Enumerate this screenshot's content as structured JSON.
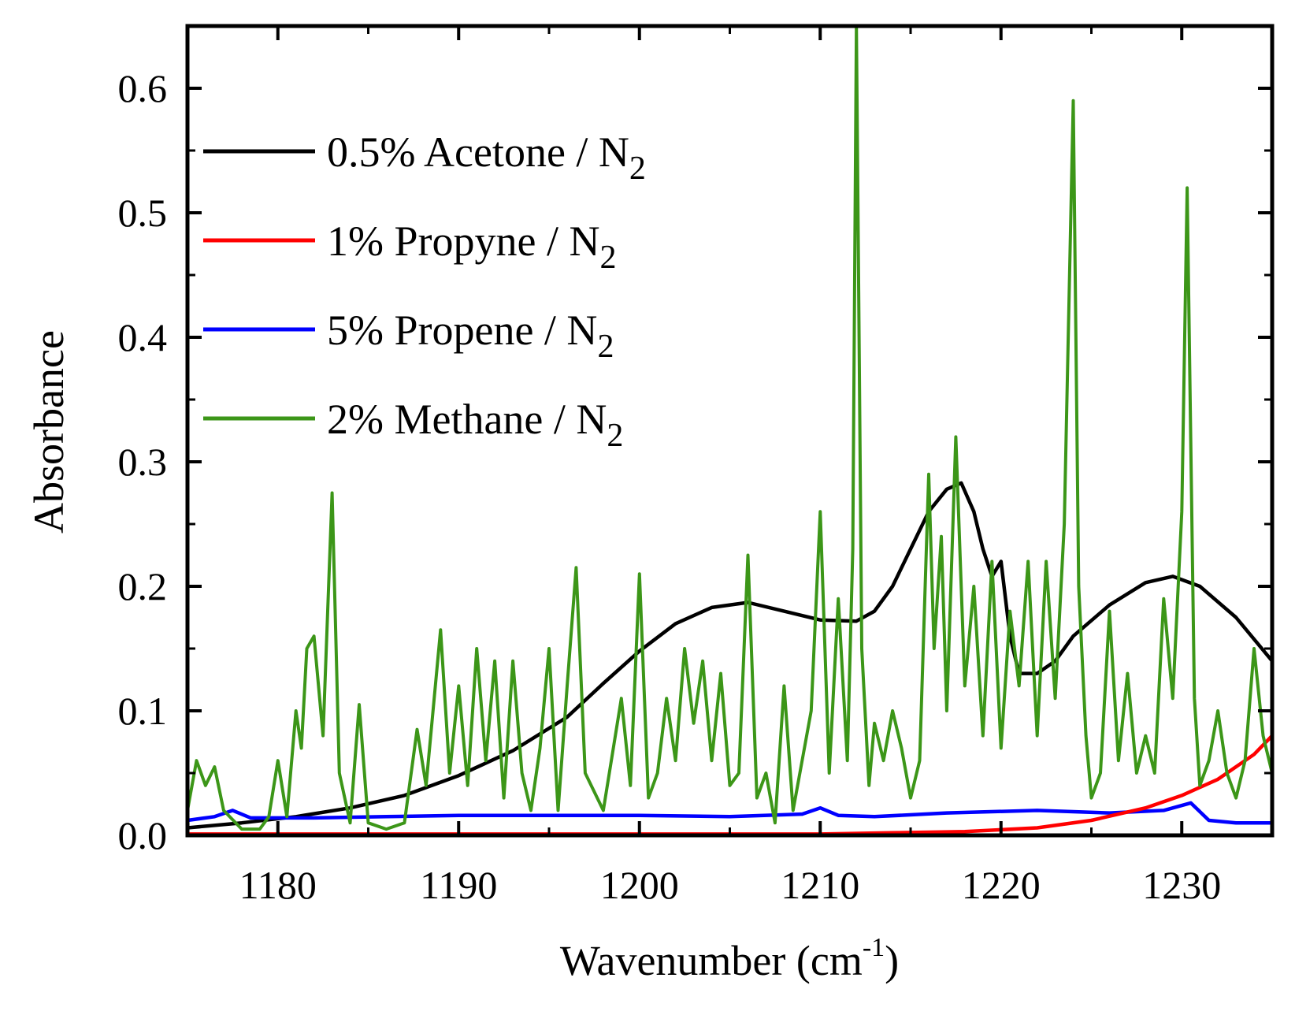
{
  "chart_data": {
    "type": "line",
    "title": "",
    "xlabel": "Wavenumber (cm",
    "xlabel_superscript": "-1",
    "xlabel_suffix": ")",
    "ylabel": "Absorbance",
    "xlim": [
      1175,
      1235
    ],
    "ylim": [
      0.0,
      0.65
    ],
    "x_ticks": [
      1180,
      1190,
      1200,
      1210,
      1220,
      1230
    ],
    "x_tick_labels": [
      "1180",
      "1190",
      "1200",
      "1210",
      "1220",
      "1230"
    ],
    "y_ticks": [
      0.0,
      0.1,
      0.2,
      0.3,
      0.4,
      0.5,
      0.6
    ],
    "y_tick_labels": [
      "0.0",
      "0.1",
      "0.2",
      "0.3",
      "0.4",
      "0.5",
      "0.6"
    ],
    "grid": false,
    "legend_position": "top-left",
    "series": [
      {
        "name": "0.5% Acetone / N",
        "name_subscript": "2",
        "color": "#000000",
        "x": [
          1175,
          1178,
          1181,
          1184,
          1187,
          1190,
          1193,
          1196,
          1198,
          1200,
          1202,
          1204,
          1206,
          1208,
          1210,
          1212,
          1213,
          1214,
          1215,
          1216,
          1217,
          1217.8,
          1218.5,
          1219,
          1219.5,
          1220,
          1220.5,
          1221,
          1222,
          1223,
          1224,
          1226,
          1228,
          1229.5,
          1231,
          1233,
          1235
        ],
        "y": [
          0.006,
          0.01,
          0.015,
          0.022,
          0.032,
          0.048,
          0.068,
          0.095,
          0.122,
          0.148,
          0.17,
          0.183,
          0.187,
          0.18,
          0.173,
          0.172,
          0.18,
          0.2,
          0.23,
          0.26,
          0.278,
          0.283,
          0.26,
          0.23,
          0.208,
          0.22,
          0.16,
          0.13,
          0.13,
          0.14,
          0.16,
          0.185,
          0.203,
          0.208,
          0.2,
          0.175,
          0.14
        ]
      },
      {
        "name": "1% Propyne / N",
        "name_subscript": "2",
        "color": "#ff0000",
        "x": [
          1175,
          1210,
          1214,
          1218,
          1222,
          1225,
          1228,
          1230,
          1232,
          1234,
          1235
        ],
        "y": [
          0.001,
          0.001,
          0.002,
          0.003,
          0.006,
          0.012,
          0.022,
          0.032,
          0.045,
          0.065,
          0.08
        ]
      },
      {
        "name": "5% Propene / N",
        "name_subscript": "2",
        "color": "#0000ff",
        "x": [
          1175,
          1176.5,
          1177.5,
          1178.5,
          1182,
          1186,
          1190,
          1195,
          1200,
          1205,
          1209,
          1210,
          1211,
          1213,
          1217,
          1222,
          1226,
          1229,
          1230.5,
          1231.5,
          1233,
          1235
        ],
        "y": [
          0.012,
          0.015,
          0.02,
          0.014,
          0.014,
          0.015,
          0.016,
          0.016,
          0.016,
          0.015,
          0.017,
          0.022,
          0.016,
          0.015,
          0.018,
          0.02,
          0.018,
          0.02,
          0.026,
          0.012,
          0.01,
          0.01
        ]
      },
      {
        "name": "2% Methane / N",
        "name_subscript": "2",
        "color": "#3c9618",
        "x": [
          1175,
          1175.5,
          1176,
          1176.5,
          1177,
          1178,
          1179,
          1179.5,
          1180,
          1180.5,
          1181,
          1181.3,
          1181.6,
          1182,
          1182.5,
          1183,
          1183.4,
          1184,
          1184.5,
          1185,
          1186,
          1187,
          1187.7,
          1188.2,
          1189,
          1189.5,
          1190,
          1190.5,
          1191,
          1191.5,
          1192,
          1192.5,
          1193,
          1193.5,
          1194,
          1194.5,
          1195,
          1195.5,
          1196,
          1196.5,
          1197,
          1198,
          1199,
          1199.5,
          1200,
          1200.5,
          1201,
          1201.5,
          1202,
          1202.5,
          1203,
          1203.5,
          1204,
          1204.5,
          1205,
          1205.5,
          1206,
          1206.5,
          1207,
          1207.5,
          1208,
          1208.5,
          1209,
          1209.5,
          1210,
          1210.5,
          1211,
          1211.5,
          1211.8,
          1212,
          1212.3,
          1212.7,
          1213,
          1213.5,
          1214,
          1214.5,
          1215,
          1215.5,
          1216,
          1216.3,
          1216.7,
          1217,
          1217.5,
          1218,
          1218.5,
          1219,
          1219.5,
          1220,
          1220.5,
          1221,
          1221.5,
          1222,
          1222.5,
          1223,
          1223.5,
          1224,
          1224.3,
          1224.7,
          1225,
          1225.5,
          1226,
          1226.5,
          1227,
          1227.5,
          1228,
          1228.5,
          1229,
          1229.5,
          1230,
          1230.3,
          1230.7,
          1231,
          1231.5,
          1232,
          1232.5,
          1233,
          1233.5,
          1234,
          1234.5,
          1235
        ],
        "y": [
          0.02,
          0.06,
          0.04,
          0.055,
          0.02,
          0.005,
          0.005,
          0.015,
          0.06,
          0.015,
          0.1,
          0.07,
          0.15,
          0.16,
          0.08,
          0.275,
          0.05,
          0.01,
          0.105,
          0.01,
          0.005,
          0.01,
          0.085,
          0.04,
          0.165,
          0.05,
          0.12,
          0.04,
          0.15,
          0.06,
          0.14,
          0.03,
          0.14,
          0.05,
          0.02,
          0.07,
          0.15,
          0.02,
          0.12,
          0.215,
          0.05,
          0.02,
          0.11,
          0.04,
          0.21,
          0.03,
          0.05,
          0.11,
          0.06,
          0.15,
          0.09,
          0.14,
          0.06,
          0.13,
          0.04,
          0.05,
          0.225,
          0.03,
          0.05,
          0.01,
          0.12,
          0.02,
          0.06,
          0.1,
          0.26,
          0.05,
          0.19,
          0.06,
          0.23,
          0.65,
          0.15,
          0.04,
          0.09,
          0.06,
          0.1,
          0.07,
          0.03,
          0.06,
          0.29,
          0.15,
          0.24,
          0.1,
          0.32,
          0.12,
          0.2,
          0.08,
          0.22,
          0.07,
          0.18,
          0.12,
          0.22,
          0.08,
          0.22,
          0.11,
          0.25,
          0.59,
          0.2,
          0.08,
          0.03,
          0.05,
          0.18,
          0.06,
          0.13,
          0.05,
          0.08,
          0.05,
          0.19,
          0.11,
          0.26,
          0.52,
          0.11,
          0.04,
          0.06,
          0.1,
          0.05,
          0.03,
          0.06,
          0.15,
          0.08,
          0.05
        ]
      }
    ]
  }
}
